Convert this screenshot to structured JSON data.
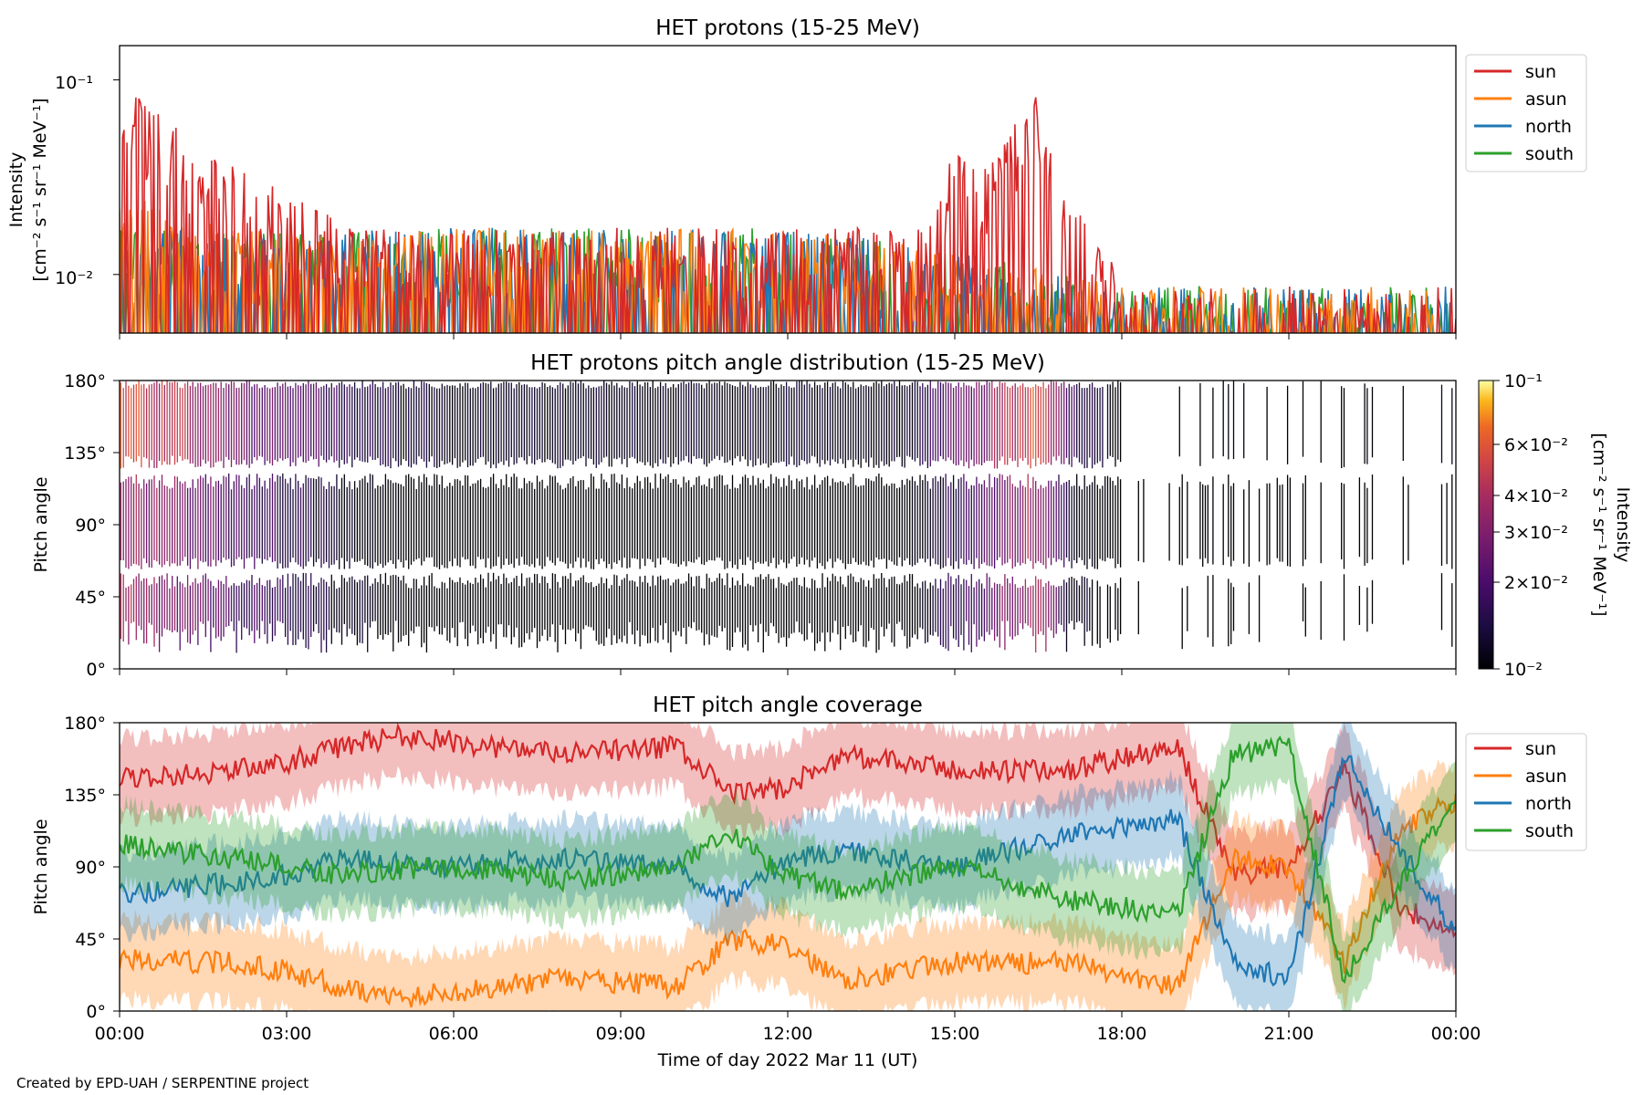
{
  "footer": "Created by EPD-UAH / SERPENTINE project",
  "xaxis": {
    "label": "Time of day 2022 Mar 11 (UT)",
    "ticks": [
      "00:00",
      "03:00",
      "06:00",
      "09:00",
      "12:00",
      "15:00",
      "18:00",
      "21:00",
      "00:00"
    ],
    "range_hours": [
      0,
      24
    ]
  },
  "panels": {
    "intensity": {
      "title": "HET protons (15-25 MeV)",
      "ylabel_1": "Intensity",
      "ylabel_2": "[cm⁻² s⁻¹ sr⁻¹ MeV⁻¹]",
      "ytick_1": "10⁻¹",
      "ytick_2": "10⁻²",
      "legend": [
        "sun",
        "asun",
        "north",
        "south"
      ]
    },
    "pad": {
      "title": "HET protons pitch angle distribution (15-25 MeV)",
      "ylabel": "Pitch angle",
      "yticks": [
        "180°",
        "135°",
        "90°",
        "45°",
        "0°"
      ],
      "colorbar": {
        "label_1": "Intensity",
        "label_2": "[cm⁻² s⁻¹ sr⁻¹ MeV⁻¹]",
        "ticks": [
          "10⁻¹",
          "6×10⁻²",
          "4×10⁻²",
          "3×10⁻²",
          "2×10⁻²",
          "10⁻²"
        ]
      }
    },
    "coverage": {
      "title": "HET pitch angle coverage",
      "ylabel": "Pitch angle",
      "yticks": [
        "180°",
        "135°",
        "90°",
        "45°",
        "0°"
      ],
      "legend": [
        "sun",
        "asun",
        "north",
        "south"
      ]
    }
  },
  "chart_data": [
    {
      "type": "line",
      "title": "HET protons (15-25 MeV)",
      "ylabel": "Intensity [cm⁻² s⁻¹ sr⁻¹ MeV⁻¹]",
      "xlabel": "Time of day 2022 Mar 11 (UT)",
      "yscale": "log",
      "ylim": [
        0.005,
        0.15
      ],
      "series_colors": {
        "sun": "#d62728",
        "asun": "#ff7f0e",
        "north": "#1f77b4",
        "south": "#2ca02c"
      },
      "series": [
        {
          "name": "sun",
          "x": [
            0,
            0.5,
            1,
            1.5,
            2,
            2.5,
            3,
            4,
            6,
            9,
            12,
            14.5,
            15,
            15.5,
            16,
            16.5,
            17,
            17.5,
            18,
            20,
            22,
            24
          ],
          "y": [
            0.06,
            0.055,
            0.04,
            0.03,
            0.025,
            0.024,
            0.02,
            0.012,
            0.012,
            0.012,
            0.012,
            0.012,
            0.03,
            0.025,
            0.04,
            0.06,
            0.025,
            0.012,
            0.006,
            0.006,
            0.006,
            0.006
          ]
        },
        {
          "name": "asun",
          "x": [
            0,
            1,
            2,
            3,
            6,
            12,
            18,
            24
          ],
          "y": [
            0.018,
            0.015,
            0.012,
            0.012,
            0.012,
            0.012,
            0.006,
            0.006
          ]
        },
        {
          "name": "north",
          "x": [
            0,
            3,
            6,
            12,
            18,
            24
          ],
          "y": [
            0.012,
            0.012,
            0.012,
            0.012,
            0.006,
            0.006
          ]
        },
        {
          "name": "south",
          "x": [
            0,
            3,
            6,
            12,
            18,
            24
          ],
          "y": [
            0.012,
            0.012,
            0.012,
            0.012,
            0.006,
            0.006
          ]
        }
      ]
    },
    {
      "type": "heatmap",
      "title": "HET protons pitch angle distribution (15-25 MeV)",
      "ylabel": "Pitch angle",
      "ylim": [
        0,
        180
      ],
      "colorscale": "inferno",
      "clim": [
        0.01,
        0.1
      ],
      "color_scale_type": "log",
      "colorbar_label": "Intensity [cm⁻² s⁻¹ sr⁻¹ MeV⁻¹]",
      "time_hours": [
        0,
        1,
        2,
        3,
        4,
        5,
        6,
        8,
        10,
        12,
        14,
        15.5,
        16.5,
        17,
        18,
        20,
        22,
        24
      ],
      "peak_intensity": [
        0.06,
        0.045,
        0.03,
        0.025,
        0.018,
        0.014,
        0.012,
        0.012,
        0.012,
        0.012,
        0.012,
        0.03,
        0.06,
        0.02,
        0.011,
        0.01,
        0.01,
        0.01
      ]
    },
    {
      "type": "line",
      "title": "HET pitch angle coverage",
      "ylabel": "Pitch angle",
      "ylim": [
        0,
        180
      ],
      "series_colors": {
        "sun": "#d62728",
        "asun": "#ff7f0e",
        "north": "#1f77b4",
        "south": "#2ca02c"
      },
      "band_halfwidth_deg": 25,
      "series": [
        {
          "name": "sun",
          "x": [
            0,
            2,
            3,
            4,
            5,
            6,
            8,
            10,
            11,
            12,
            13,
            15,
            17,
            19,
            20,
            21,
            22,
            23,
            24
          ],
          "y": [
            145,
            150,
            155,
            165,
            172,
            168,
            160,
            165,
            135,
            140,
            160,
            150,
            150,
            165,
            85,
            90,
            150,
            65,
            48
          ]
        },
        {
          "name": "asun",
          "x": [
            0,
            2,
            3,
            4,
            5,
            6,
            8,
            10,
            11,
            12,
            13,
            15,
            17,
            19,
            20,
            21,
            22,
            23,
            24
          ],
          "y": [
            32,
            30,
            25,
            15,
            8,
            12,
            20,
            15,
            45,
            40,
            20,
            30,
            30,
            15,
            95,
            90,
            30,
            115,
            130
          ]
        },
        {
          "name": "north",
          "x": [
            0,
            2,
            3,
            4,
            5,
            6,
            8,
            10,
            11,
            12,
            13,
            15,
            17,
            19,
            20,
            21,
            22,
            23,
            24
          ],
          "y": [
            72,
            80,
            85,
            95,
            92,
            90,
            95,
            90,
            70,
            95,
            100,
            90,
            110,
            120,
            30,
            20,
            160,
            100,
            50
          ]
        },
        {
          "name": "south",
          "x": [
            0,
            2,
            3,
            4,
            5,
            6,
            8,
            10,
            11,
            12,
            13,
            15,
            17,
            19,
            20,
            21,
            22,
            23,
            24
          ],
          "y": [
            105,
            95,
            90,
            85,
            88,
            90,
            82,
            90,
            110,
            85,
            75,
            90,
            70,
            60,
            160,
            165,
            20,
            80,
            130
          ]
        }
      ]
    }
  ]
}
